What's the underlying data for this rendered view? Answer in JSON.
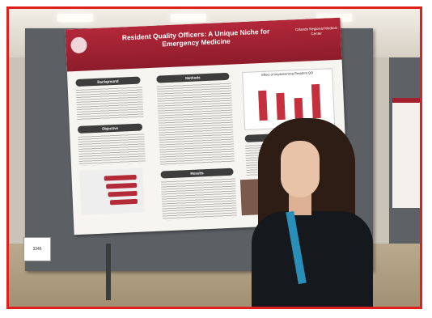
{
  "poster": {
    "title": "Resident Quality Officers: A Unique Niche for Emergency Medicine",
    "logo": "Orlando Regional Medical Center",
    "chart_title": "Effect of Implementing Resident QO",
    "section_background": "Background",
    "section_methods": "Methods",
    "section_objective": "Objective",
    "section_results": "Results",
    "section_conclusion": "Co"
  },
  "table_card": "3346",
  "chart_data": {
    "type": "bar",
    "title": "Effect of Implementing Resident QO",
    "categories": [
      "",
      "",
      "",
      ""
    ],
    "values": [
      85,
      75,
      60,
      95
    ],
    "ylim": [
      0,
      100
    ]
  }
}
